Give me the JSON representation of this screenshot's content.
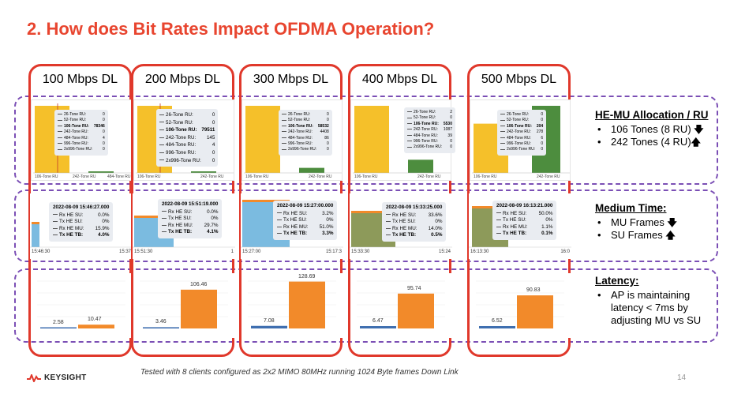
{
  "title": "2. How does Bit Rates Impact OFDMA Operation?",
  "colors": {
    "accent_red": "#e8452f",
    "border_red": "#e0382b",
    "dashed_purple": "#7b4fb5",
    "yellow": "#f5c02a",
    "green": "#4d8d3e",
    "orange": "#f28a2a",
    "blue": "#3f6fb0",
    "light_blue": "#7bbbe0",
    "olive": "#8d9a5a"
  },
  "columns": [
    {
      "label": "100 Mbps DL",
      "alloc": {
        "x_labels": [
          "106-Tone RU",
          "242-Tone RU",
          "484-Tone RU"
        ],
        "items": [
          [
            "26-Tone RU:",
            "0"
          ],
          [
            "52-Tone RU:",
            "0"
          ],
          [
            "106-Tone RU:",
            "78346"
          ],
          [
            "242-Tone RU:",
            "0"
          ],
          [
            "484-Tone RU:",
            "4"
          ],
          [
            "996-Tone RU:",
            "0"
          ],
          [
            "2x996-Tone RU:",
            "0"
          ]
        ]
      },
      "medium": {
        "timestamp": "2022-08-09 15:46:27.000",
        "rows": [
          [
            "Rx HE SU:",
            "0.0%"
          ],
          [
            "Tx HE SU:",
            "0%"
          ],
          [
            "Rx HE MU:",
            "15.9%"
          ],
          [
            "Tx HE TB:",
            "4.0%"
          ]
        ],
        "time_left": "15:46:30",
        "time_right": "15:37"
      },
      "latency": {
        "values": [
          "2.58",
          "10.47"
        ]
      }
    },
    {
      "label": "200 Mbps DL",
      "alloc": {
        "x_labels": [
          "106-Tone RU",
          "242-Tone RU"
        ],
        "items": [
          [
            "26-Tone RU:",
            "0"
          ],
          [
            "52-Tone RU:",
            "0"
          ],
          [
            "106-Tone RU:",
            "79511"
          ],
          [
            "242-Tone RU:",
            "145"
          ],
          [
            "484-Tone RU:",
            "4"
          ],
          [
            "996-Tone RU:",
            "0"
          ],
          [
            "2x996-Tone RU:",
            "0"
          ]
        ]
      },
      "medium": {
        "timestamp": "2022-08-09 15:51:19.000",
        "rows": [
          [
            "Rx HE SU:",
            "0.0%"
          ],
          [
            "Tx HE SU:",
            "0%"
          ],
          [
            "Rx HE MU:",
            "29.7%"
          ],
          [
            "Tx HE TB:",
            "4.1%"
          ]
        ],
        "time_left": "15:51:30",
        "time_right": "1"
      },
      "latency": {
        "values": [
          "3.46",
          "106.46"
        ]
      }
    },
    {
      "label": "300 Mbps DL",
      "alloc": {
        "x_labels": [
          "106-Tone RU",
          "242-Tone RU"
        ],
        "items": [
          [
            "26-Tone RU:",
            "0"
          ],
          [
            "52-Tone RU:",
            "0"
          ],
          [
            "106-Tone RU:",
            "58532"
          ],
          [
            "242-Tone RU:",
            "4408"
          ],
          [
            "484-Tone RU:",
            "86"
          ],
          [
            "996-Tone RU:",
            "0"
          ],
          [
            "2x996-Tone RU:",
            "0"
          ]
        ]
      },
      "medium": {
        "timestamp": "2022-08-09 15:27:00.000",
        "rows": [
          [
            "Rx HE SU:",
            "3.2%"
          ],
          [
            "Tx HE SU:",
            "0%"
          ],
          [
            "Rx HE MU:",
            "51.0%"
          ],
          [
            "Tx HE TB:",
            "3.3%"
          ]
        ],
        "time_left": "15:27:00",
        "time_right": "15:17:3"
      },
      "latency": {
        "values": [
          "7.08",
          "128.69"
        ]
      }
    },
    {
      "label": "400 Mbps DL",
      "alloc": {
        "x_labels": [
          "106-Tone RU",
          "242-Tone RU"
        ],
        "items": [
          [
            "26-Tone RU:",
            "2"
          ],
          [
            "52-Tone RU:",
            "0"
          ],
          [
            "106-Tone RU:",
            "5530"
          ],
          [
            "242-Tone RU:",
            "1087"
          ],
          [
            "484-Tone RU:",
            "39"
          ],
          [
            "996-Tone RU:",
            "0"
          ],
          [
            "2x996-Tone RU:",
            "0"
          ]
        ]
      },
      "medium": {
        "timestamp": "2022-08-09 15:33:25.000",
        "rows": [
          [
            "Rx HE SU:",
            "33.6%"
          ],
          [
            "Tx HE SU:",
            "0%"
          ],
          [
            "Rx HE MU:",
            "14.0%"
          ],
          [
            "Tx HE TB:",
            "0.5%"
          ]
        ],
        "time_left": "15:33:30",
        "time_right": "15:24"
      },
      "latency": {
        "values": [
          "6.47",
          "95.74"
        ]
      }
    },
    {
      "label": "500 Mbps DL",
      "alloc": {
        "x_labels": [
          "106-Tone RU",
          "242-Tone RU"
        ],
        "items": [
          [
            "26-Tone RU:",
            "0"
          ],
          [
            "52-Tone RU:",
            "0"
          ],
          [
            "106-Tone RU:",
            "204"
          ],
          [
            "242-Tone RU:",
            "278"
          ],
          [
            "484-Tone RU:",
            "6"
          ],
          [
            "996-Tone RU:",
            "0"
          ],
          [
            "2x996-Tone RU:",
            "0"
          ]
        ]
      },
      "medium": {
        "timestamp": "2022-08-09 16:13:21.000",
        "rows": [
          [
            "Rx HE SU:",
            "50.0%"
          ],
          [
            "Tx HE SU:",
            "0%"
          ],
          [
            "Rx HE MU:",
            "1.1%"
          ],
          [
            "Tx HE TB:",
            "0.1%"
          ]
        ],
        "time_left": "16:13:30",
        "time_right": "16:0"
      },
      "latency": {
        "values": [
          "6.52",
          "90.83"
        ]
      }
    }
  ],
  "sidebar": {
    "alloc": {
      "title": "HE-MU Allocation / RU",
      "items": [
        "106 Tones (8 RU)",
        "242 Tones (4 RU)"
      ],
      "arrows": [
        "down-arrow-icon",
        "up-arrow-icon"
      ]
    },
    "medium": {
      "title": "Medium Time:",
      "items": [
        "MU Frames",
        "SU Frames"
      ],
      "arrows": [
        "down-arrow-icon",
        "up-arrow-icon"
      ]
    },
    "latency": {
      "title": "Latency:",
      "lines": [
        "AP is maintaining",
        "latency < 7ms by",
        "adjusting MU vs SU"
      ]
    }
  },
  "footer": {
    "note": "Tested with 8 clients configured as 2x2 MIMO 80MHz running 1024 Byte frames Down Link",
    "logo": "KEYSIGHT",
    "page": "14"
  }
}
